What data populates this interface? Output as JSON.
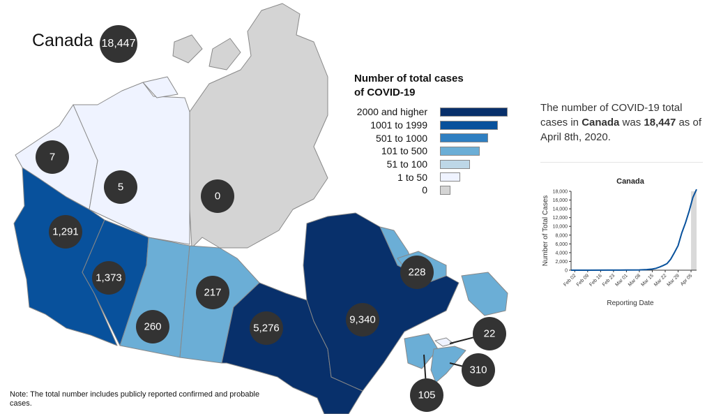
{
  "national": {
    "label": "Canada",
    "value": "18,447"
  },
  "legend": {
    "title_line1": "Number of total cases",
    "title_line2": "of COVID-19",
    "items": [
      {
        "label": "2000 and higher",
        "color": "#08306b"
      },
      {
        "label": "1001 to 1999",
        "color": "#08519c"
      },
      {
        "label": "501 to 1000",
        "color": "#2f7fc1"
      },
      {
        "label": "101 to 500",
        "color": "#6baed6"
      },
      {
        "label": "51 to 100",
        "color": "#bdd7e7"
      },
      {
        "label": "1 to 50",
        "color": "#eff3ff"
      },
      {
        "label": "0",
        "color": "#d4d4d4"
      }
    ]
  },
  "regions": [
    {
      "name": "Yukon",
      "value": "7",
      "color": "#eff3ff"
    },
    {
      "name": "Northwest Territories",
      "value": "5",
      "color": "#eff3ff"
    },
    {
      "name": "Nunavut",
      "value": "0",
      "color": "#d4d4d4"
    },
    {
      "name": "British Columbia",
      "value": "1,291",
      "color": "#08519c"
    },
    {
      "name": "Alberta",
      "value": "1,373",
      "color": "#08519c"
    },
    {
      "name": "Saskatchewan",
      "value": "260",
      "color": "#6baed6"
    },
    {
      "name": "Manitoba",
      "value": "217",
      "color": "#6baed6"
    },
    {
      "name": "Ontario",
      "value": "5,276",
      "color": "#08306b"
    },
    {
      "name": "Quebec",
      "value": "9,340",
      "color": "#08306b"
    },
    {
      "name": "Newfoundland and Labrador",
      "value": "228",
      "color": "#6baed6"
    },
    {
      "name": "Prince Edward Island",
      "value": "22",
      "color": "#eff3ff"
    },
    {
      "name": "Nova Scotia",
      "value": "310",
      "color": "#6baed6"
    },
    {
      "name": "New Brunswick",
      "value": "105",
      "color": "#6baed6"
    }
  ],
  "summary": {
    "prefix": "The number of COVID-19 total cases in ",
    "place": "Canada",
    "middle": " was ",
    "count": "18,447",
    "suffix": " as of April 8th, 2020."
  },
  "chart_data": {
    "type": "line",
    "title": "Canada",
    "xlabel": "Reporting Date",
    "ylabel": "Number of Total Cases",
    "ylim": [
      0,
      18000
    ],
    "yticks": [
      0,
      2000,
      4000,
      6000,
      8000,
      10000,
      12000,
      14000,
      16000,
      18000
    ],
    "ytick_labels": [
      "0",
      "2,000",
      "4,000",
      "6,000",
      "8,000",
      "10,000",
      "12,000",
      "14,000",
      "16,000",
      "18,000"
    ],
    "xticks": [
      "Feb 02",
      "Feb 09",
      "Feb 16",
      "Feb 23",
      "Mar 01",
      "Mar 08",
      "Mar 15",
      "Mar 22",
      "Mar 29",
      "Apr 05"
    ],
    "x_start": "Jan 31",
    "x_end": "Apr 08",
    "highlight_start": "Apr 05",
    "series": [
      {
        "x": [
          "Jan 31",
          "Feb 09",
          "Feb 20",
          "Mar 01",
          "Mar 08",
          "Mar 12",
          "Mar 15",
          "Mar 17",
          "Mar 19",
          "Mar 21",
          "Mar 23",
          "Mar 25",
          "Mar 27",
          "Mar 29",
          "Mar 31",
          "Apr 02",
          "Apr 04",
          "Apr 06",
          "Apr 08"
        ],
        "y": [
          3,
          7,
          8,
          24,
          62,
          138,
          250,
          424,
          727,
          1087,
          1500,
          2500,
          4000,
          5600,
          8500,
          10800,
          13500,
          16600,
          18447
        ]
      }
    ]
  },
  "note": "Note: The total number includes publicly reported confirmed and probable cases."
}
